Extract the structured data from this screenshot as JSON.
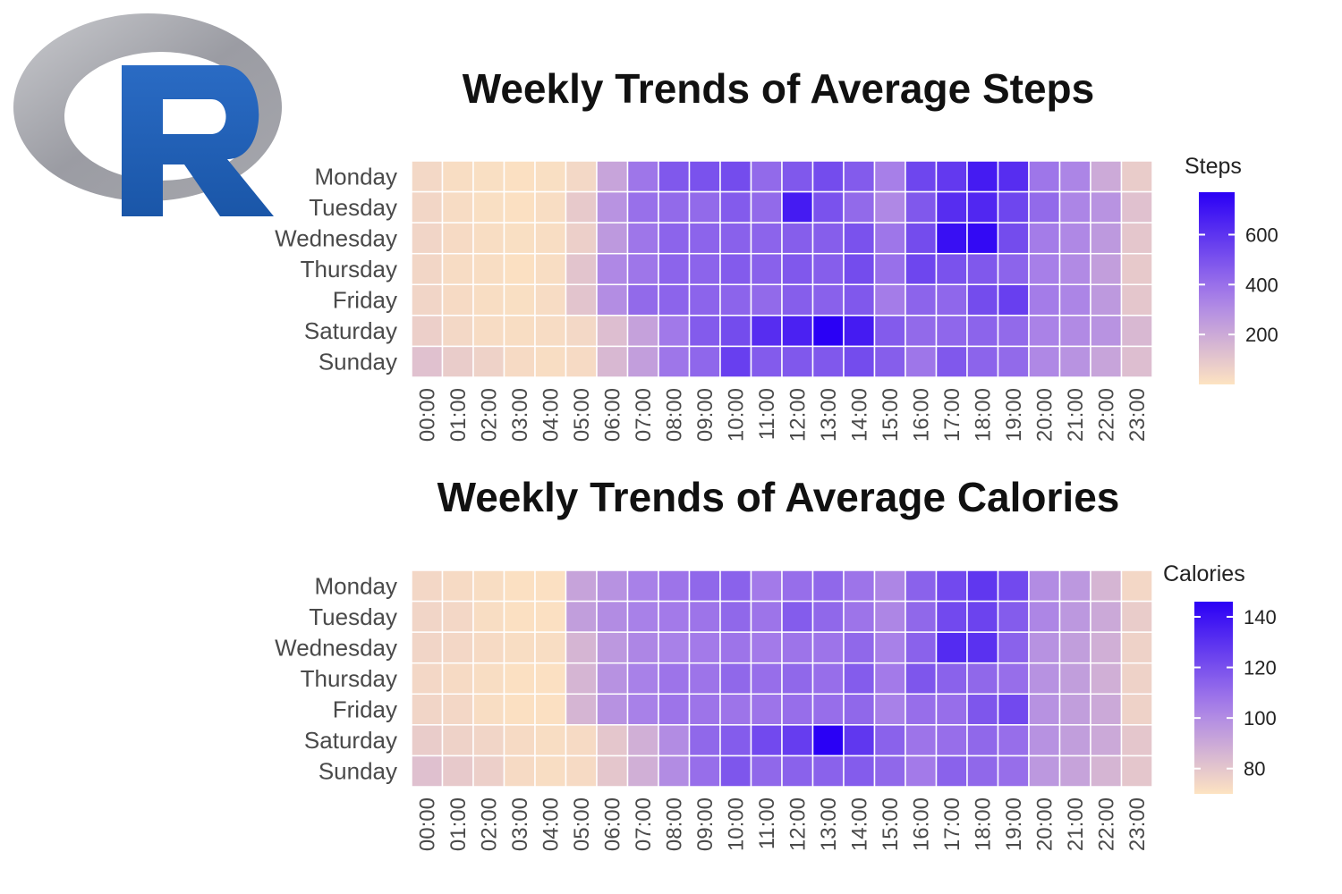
{
  "logo": {
    "name": "R",
    "ring_color": "#a9aab0",
    "letter_color": "#1f5fb4"
  },
  "colors": {
    "low": "#fde3c1",
    "high": "#2a00f5",
    "grid": "#ffffff",
    "text": "#4a4a4a"
  },
  "chart_data": [
    {
      "type": "heatmap",
      "title": "Weekly Trends of Average Steps",
      "legend_title": "Steps",
      "legend_ticks": [
        200,
        400,
        600
      ],
      "legend_position": "right",
      "value_range": [
        0,
        770
      ],
      "x": [
        "00:00",
        "01:00",
        "02:00",
        "03:00",
        "04:00",
        "05:00",
        "06:00",
        "07:00",
        "08:00",
        "09:00",
        "10:00",
        "11:00",
        "12:00",
        "13:00",
        "14:00",
        "15:00",
        "16:00",
        "17:00",
        "18:00",
        "19:00",
        "20:00",
        "21:00",
        "22:00",
        "23:00"
      ],
      "y": [
        "Monday",
        "Tuesday",
        "Wednesday",
        "Thursday",
        "Friday",
        "Saturday",
        "Sunday"
      ],
      "values": [
        [
          40,
          20,
          15,
          10,
          15,
          40,
          220,
          380,
          480,
          500,
          520,
          420,
          480,
          520,
          470,
          350,
          540,
          580,
          680,
          620,
          380,
          330,
          200,
          80
        ],
        [
          45,
          25,
          15,
          10,
          20,
          90,
          280,
          400,
          420,
          420,
          470,
          420,
          680,
          500,
          420,
          320,
          480,
          620,
          640,
          540,
          420,
          330,
          280,
          120
        ],
        [
          50,
          30,
          20,
          15,
          20,
          70,
          260,
          380,
          440,
          440,
          450,
          440,
          460,
          460,
          500,
          380,
          520,
          720,
          740,
          520,
          360,
          320,
          260,
          100
        ],
        [
          45,
          25,
          20,
          10,
          20,
          110,
          320,
          380,
          440,
          440,
          470,
          450,
          480,
          460,
          520,
          400,
          540,
          500,
          480,
          440,
          350,
          310,
          240,
          90
        ],
        [
          50,
          30,
          20,
          15,
          25,
          110,
          300,
          420,
          440,
          440,
          440,
          420,
          460,
          450,
          480,
          360,
          440,
          430,
          520,
          560,
          360,
          330,
          260,
          100
        ],
        [
          70,
          40,
          25,
          20,
          25,
          40,
          130,
          230,
          370,
          470,
          520,
          620,
          660,
          770,
          680,
          470,
          420,
          430,
          440,
          420,
          340,
          310,
          280,
          150
        ],
        [
          120,
          80,
          60,
          30,
          20,
          30,
          150,
          240,
          380,
          430,
          560,
          470,
          480,
          480,
          520,
          460,
          380,
          480,
          440,
          420,
          320,
          280,
          220,
          130
        ]
      ]
    },
    {
      "type": "heatmap",
      "title": "Weekly Trends of Average Calories",
      "legend_title": "Calories",
      "legend_ticks": [
        80,
        100,
        120,
        140
      ],
      "legend_position": "right",
      "value_range": [
        70,
        146
      ],
      "x": [
        "00:00",
        "01:00",
        "02:00",
        "03:00",
        "04:00",
        "05:00",
        "06:00",
        "07:00",
        "08:00",
        "09:00",
        "10:00",
        "11:00",
        "12:00",
        "13:00",
        "14:00",
        "15:00",
        "16:00",
        "17:00",
        "18:00",
        "19:00",
        "20:00",
        "21:00",
        "22:00",
        "23:00"
      ],
      "y": [
        "Monday",
        "Tuesday",
        "Wednesday",
        "Thursday",
        "Friday",
        "Saturday",
        "Sunday"
      ],
      "values": [
        [
          74,
          73,
          72,
          71,
          71,
          92,
          98,
          104,
          108,
          112,
          114,
          106,
          110,
          112,
          108,
          102,
          114,
          122,
          128,
          122,
          100,
          96,
          86,
          74
        ],
        [
          75,
          74,
          72,
          71,
          71,
          94,
          100,
          104,
          106,
          108,
          112,
          108,
          116,
          112,
          108,
          102,
          112,
          122,
          124,
          116,
          102,
          96,
          90,
          78
        ],
        [
          75,
          74,
          73,
          72,
          72,
          86,
          96,
          102,
          104,
          106,
          108,
          106,
          108,
          108,
          112,
          104,
          114,
          132,
          130,
          114,
          98,
          94,
          88,
          76
        ],
        [
          74,
          73,
          72,
          71,
          71,
          86,
          98,
          104,
          108,
          108,
          112,
          110,
          112,
          110,
          116,
          106,
          118,
          114,
          112,
          110,
          98,
          94,
          88,
          76
        ],
        [
          75,
          74,
          72,
          71,
          71,
          86,
          98,
          104,
          108,
          108,
          108,
          108,
          110,
          110,
          112,
          104,
          110,
          110,
          118,
          122,
          98,
          94,
          90,
          76
        ],
        [
          78,
          76,
          75,
          73,
          72,
          73,
          80,
          88,
          100,
          112,
          116,
          122,
          126,
          146,
          128,
          114,
          108,
          110,
          112,
          110,
          98,
          94,
          90,
          80
        ],
        [
          82,
          79,
          77,
          73,
          72,
          73,
          80,
          88,
          100,
          110,
          118,
          112,
          114,
          114,
          116,
          112,
          106,
          114,
          112,
          110,
          96,
          92,
          86,
          80
        ]
      ]
    }
  ]
}
